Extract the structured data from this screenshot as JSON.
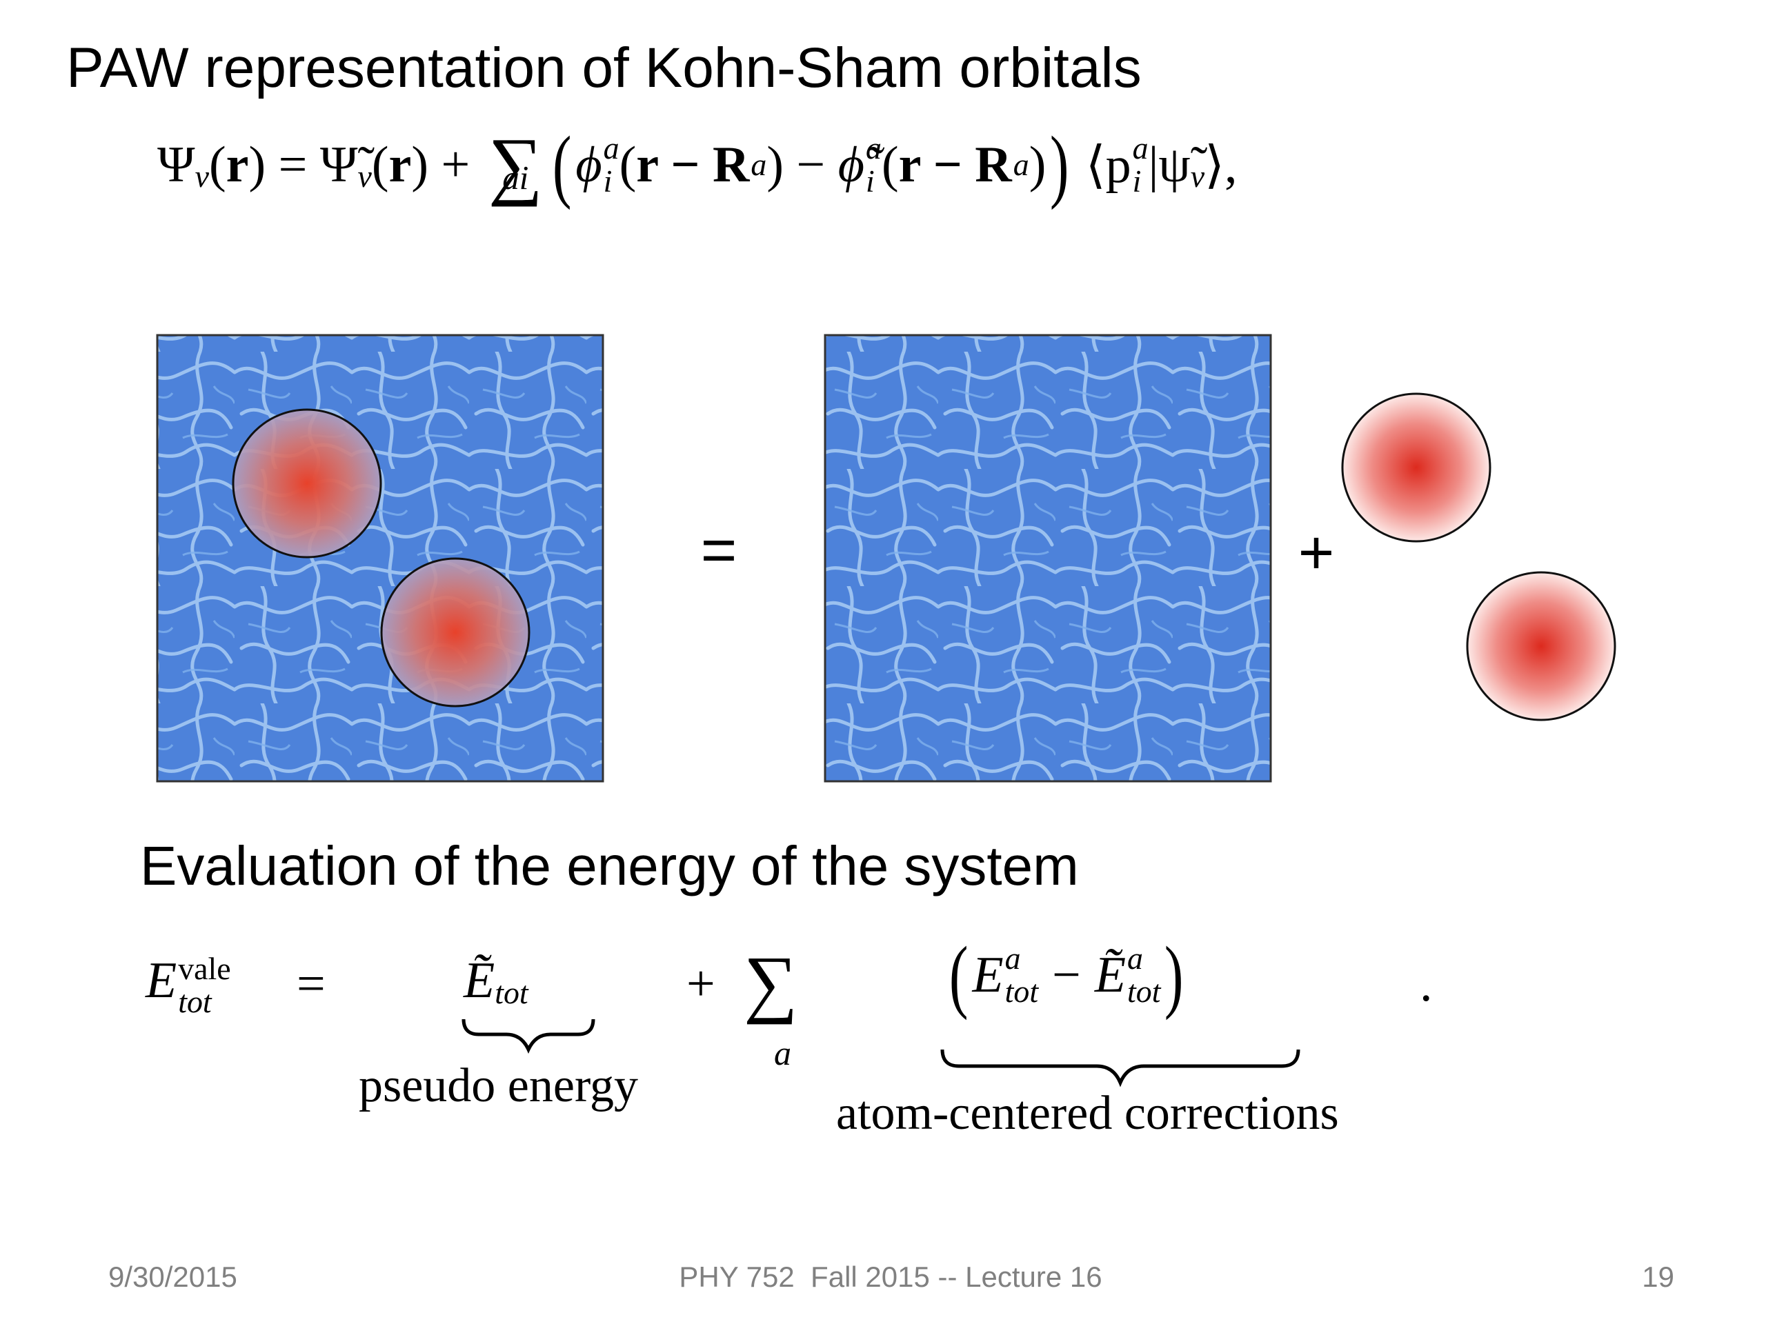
{
  "slide": {
    "title": "PAW representation of Kohn-Sham orbitals",
    "equation_1": [
      "Ψ",
      "v",
      "(",
      "r",
      ") = ",
      "Ψ̃",
      "v",
      "(",
      "r",
      ") + ",
      "∑",
      "ai",
      "(",
      "ϕ",
      "a",
      "i",
      "(",
      "r − R",
      "a",
      ") − ",
      "ϕ̃",
      "a",
      "i",
      "(",
      "r − R",
      "a",
      ")",
      ")",
      "⟨p",
      "a",
      "i",
      "|ψ̃",
      "v",
      "⟩,"
    ],
    "figure": {
      "equals": "=",
      "plus": "+"
    },
    "heading": "Evaluation of the energy of the system",
    "equation_2": [
      "E",
      "vale",
      "tot",
      "=",
      "Ẽ",
      "tot",
      "pseudo energy",
      "+",
      "∑",
      "a",
      "(",
      "E",
      "a",
      "tot",
      "−",
      "Ẽ",
      "a",
      "tot",
      ")",
      "atom-centered corrections",
      "."
    ],
    "footer": {
      "date": "9/30/2015",
      "course": "PHY 752  Fall 2015 -- Lecture 16",
      "page": "19"
    }
  }
}
